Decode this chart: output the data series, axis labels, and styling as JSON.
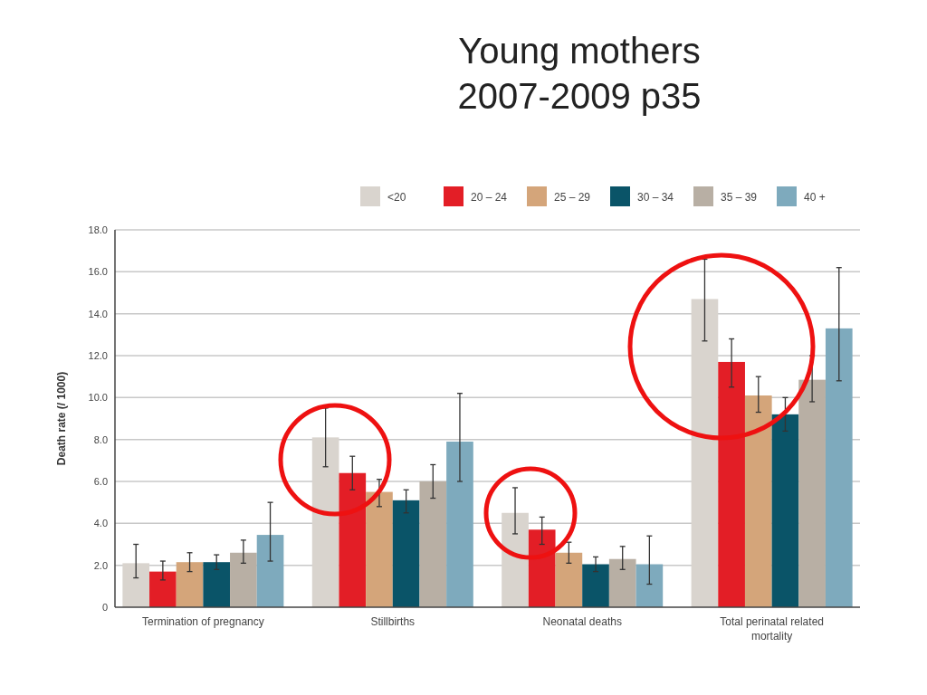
{
  "chart_data": {
    "type": "bar",
    "title": "Young mothers\n2007-2009  p35",
    "ylabel": "Death rate (/ 1000)",
    "categories": [
      "Termination of pregnancy",
      "Stillbirths",
      "Neonatal deaths",
      "Total perinatal related mortality"
    ],
    "series": [
      {
        "name": "<20",
        "color": "#d9d4ce",
        "values": [
          2.1,
          8.1,
          4.5,
          14.7
        ],
        "errors": [
          [
            1.4,
            3.0
          ],
          [
            6.7,
            9.5
          ],
          [
            3.5,
            5.7
          ],
          [
            12.7,
            16.6
          ]
        ]
      },
      {
        "name": "20 – 24",
        "color": "#e31e26",
        "values": [
          1.7,
          6.4,
          3.7,
          11.7
        ],
        "errors": [
          [
            1.3,
            2.2
          ],
          [
            5.6,
            7.2
          ],
          [
            3.0,
            4.3
          ],
          [
            10.5,
            12.8
          ]
        ]
      },
      {
        "name": "25 – 29",
        "color": "#d4a57a",
        "values": [
          2.15,
          5.5,
          2.6,
          10.1
        ],
        "errors": [
          [
            1.7,
            2.6
          ],
          [
            4.8,
            6.1
          ],
          [
            2.1,
            3.1
          ],
          [
            9.3,
            11.0
          ]
        ]
      },
      {
        "name": "30 – 34",
        "color": "#0a5468",
        "values": [
          2.15,
          5.1,
          2.05,
          9.2
        ],
        "errors": [
          [
            1.8,
            2.5
          ],
          [
            4.5,
            5.6
          ],
          [
            1.7,
            2.4
          ],
          [
            8.4,
            10.0
          ]
        ]
      },
      {
        "name": "35 – 39",
        "color": "#b8afa4",
        "values": [
          2.6,
          6.0,
          2.3,
          10.85
        ],
        "errors": [
          [
            2.1,
            3.2
          ],
          [
            5.2,
            6.8
          ],
          [
            1.8,
            2.9
          ],
          [
            9.8,
            12.0
          ]
        ]
      },
      {
        "name": "40 +",
        "color": "#7eaabd",
        "values": [
          3.45,
          7.9,
          2.05,
          13.3
        ],
        "errors": [
          [
            2.2,
            5.0
          ],
          [
            6.0,
            10.2
          ],
          [
            1.1,
            3.4
          ],
          [
            10.8,
            16.2
          ]
        ]
      }
    ],
    "ylim": [
      0,
      18
    ],
    "yticks": [
      {
        "value": 0,
        "label": "0"
      },
      {
        "value": 2,
        "label": "2.0"
      },
      {
        "value": 4,
        "label": "4.0"
      },
      {
        "value": 6,
        "label": "6.0"
      },
      {
        "value": 8,
        "label": "8.0"
      },
      {
        "value": 10,
        "label": "10.0"
      },
      {
        "value": 12,
        "label": "12.0"
      },
      {
        "value": 14,
        "label": "14.0"
      },
      {
        "value": 16,
        "label": "16.0"
      },
      {
        "value": 18,
        "label": "18.0"
      }
    ],
    "grid": "y",
    "legend": "top right"
  }
}
